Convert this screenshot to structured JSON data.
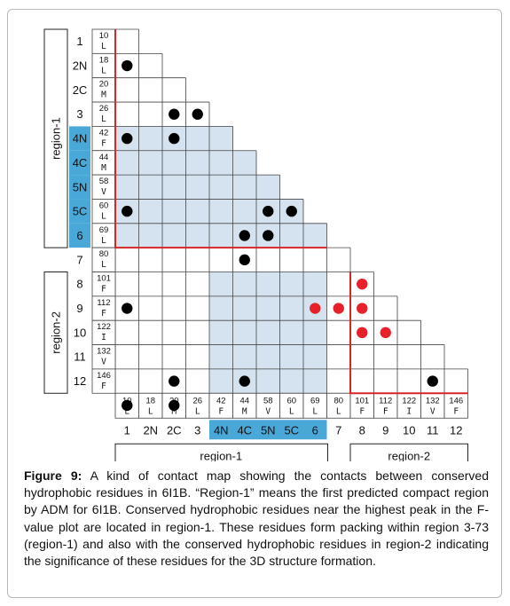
{
  "figure": {
    "residues": [
      {
        "num": "10",
        "aa": "L",
        "label": "1"
      },
      {
        "num": "18",
        "aa": "L",
        "label": "2N"
      },
      {
        "num": "20",
        "aa": "M",
        "label": "2C"
      },
      {
        "num": "26",
        "aa": "L",
        "label": "3"
      },
      {
        "num": "42",
        "aa": "F",
        "label": "4N"
      },
      {
        "num": "44",
        "aa": "M",
        "label": "4C"
      },
      {
        "num": "58",
        "aa": "V",
        "label": "5N"
      },
      {
        "num": "60",
        "aa": "L",
        "label": "5C"
      },
      {
        "num": "69",
        "aa": "L",
        "label": "6"
      },
      {
        "num": "80",
        "aa": "L",
        "label": "7"
      },
      {
        "num": "101",
        "aa": "F",
        "label": "8"
      },
      {
        "num": "112",
        "aa": "F",
        "label": "9"
      },
      {
        "num": "122",
        "aa": "I",
        "label": "10"
      },
      {
        "num": "132",
        "aa": "V",
        "label": "11"
      },
      {
        "num": "146",
        "aa": "F",
        "label": "12"
      }
    ],
    "region1_label": "region-1",
    "region2_label": "region-2",
    "highlight_residue_indices": [
      4,
      5,
      6,
      7,
      8
    ],
    "contacts_black": [
      [
        1,
        0
      ],
      [
        3,
        2
      ],
      [
        3,
        3
      ],
      [
        4,
        0
      ],
      [
        4,
        2
      ],
      [
        4,
        5
      ],
      [
        6,
        7
      ],
      [
        7,
        0
      ],
      [
        7,
        6
      ],
      [
        7,
        7
      ],
      [
        7,
        8
      ],
      [
        8,
        5
      ],
      [
        8,
        6
      ],
      [
        8,
        10
      ],
      [
        9,
        5
      ],
      [
        10,
        13
      ],
      [
        11,
        0
      ],
      [
        11,
        15
      ],
      [
        12,
        13
      ],
      [
        12,
        14
      ],
      [
        13,
        15
      ],
      [
        13,
        16
      ],
      [
        13,
        17
      ],
      [
        14,
        2
      ],
      [
        14,
        5
      ],
      [
        14,
        13
      ],
      [
        14,
        17
      ],
      [
        15,
        0
      ],
      [
        15,
        2
      ],
      [
        15,
        16
      ],
      [
        15,
        17
      ]
    ],
    "contacts_red": [
      [
        10,
        10
      ],
      [
        10,
        11
      ],
      [
        10,
        12
      ],
      [
        11,
        8
      ],
      [
        11,
        9
      ],
      [
        11,
        10
      ],
      [
        12,
        10
      ],
      [
        12,
        11
      ]
    ],
    "colors": {
      "highlight": "#4aa8d8",
      "shade": "#d5e3f0",
      "red_line": "#d62728",
      "red_dot": "#e8202a",
      "black_dot": "#000000"
    }
  },
  "caption": {
    "label": "Figure 9:",
    "text": " A kind of contact map showing the contacts between conserved hydrophobic residues in 6I1B. “Region-1” means the first predicted compact region by ADM for 6I1B. Conserved hydrophobic residues near the highest peak in the F-value plot are located in region-1. These residues form packing within region 3-73 (region-1) and also with the conserved hydrophobic residues in region-2 indicating the significance of these residues for the 3D structure formation."
  }
}
